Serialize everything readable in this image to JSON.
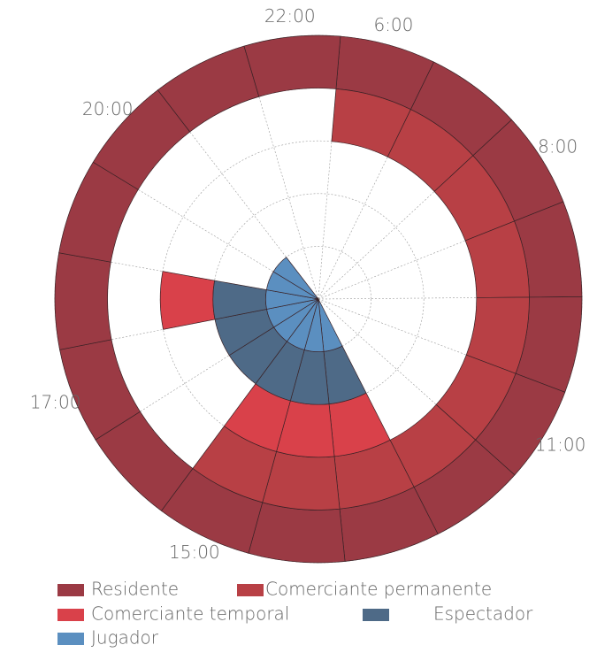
{
  "chart_data": {
    "type": "polar_rings",
    "categories": [
      "6:00",
      null,
      "8:00",
      null,
      null,
      "11:00",
      null,
      null,
      null,
      "15:00",
      null,
      "17:00",
      null,
      null,
      "20:00",
      null,
      "22:00"
    ],
    "series": [
      {
        "name": "Residente",
        "color": "#9b3a44",
        "values": [
          1,
          1,
          1,
          1,
          1,
          1,
          1,
          1,
          1,
          1,
          1,
          1,
          1,
          1,
          1,
          1,
          1
        ]
      },
      {
        "name": "Comerciante permanente",
        "color": "#b84045",
        "values": [
          1,
          1,
          1,
          1,
          1,
          1,
          1,
          1,
          1,
          1,
          0,
          0,
          0,
          0,
          0,
          0,
          0
        ]
      },
      {
        "name": "Comerciante temporal",
        "color": "#d9414a",
        "values": [
          0,
          0,
          0,
          0,
          0,
          0,
          0,
          1,
          1,
          1,
          0,
          0,
          1,
          0,
          0,
          0,
          0
        ]
      },
      {
        "name": "Espectador",
        "color": "#4e6a87",
        "values": [
          0,
          0,
          0,
          0,
          0,
          0,
          0,
          1,
          1,
          1,
          1,
          1,
          1,
          0,
          0,
          0,
          0
        ]
      },
      {
        "name": "Jugador",
        "color": "#5b8fc0",
        "values": [
          0,
          0,
          0,
          0,
          0,
          0,
          0,
          1,
          1,
          1,
          1,
          1,
          1,
          1,
          1,
          0,
          0
        ]
      }
    ],
    "grid": true
  }
}
